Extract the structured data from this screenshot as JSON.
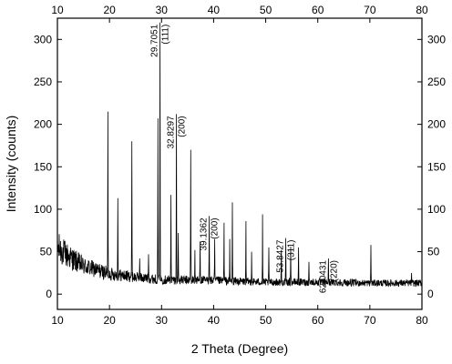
{
  "chart_data": {
    "type": "line",
    "title": "",
    "xlabel": "2 Theta (Degree)",
    "ylabel": "Intensity (counts)",
    "xlim": [
      10,
      80
    ],
    "ylim": [
      -18,
      325
    ],
    "xticks": [
      10,
      20,
      30,
      40,
      50,
      60,
      70,
      80
    ],
    "yticks": [
      0,
      50,
      100,
      150,
      200,
      250,
      300
    ],
    "grid": false,
    "legend": "none",
    "line_color": "#000000",
    "background": {
      "description": "noisy baseline decaying from ~55 counts at 10 deg to ~15 counts beyond 50 deg",
      "points": [
        [
          10,
          55
        ],
        [
          12,
          45
        ],
        [
          15,
          33
        ],
        [
          20,
          24
        ],
        [
          25,
          20
        ],
        [
          30,
          17
        ],
        [
          40,
          16
        ],
        [
          50,
          14
        ],
        [
          60,
          14
        ],
        [
          70,
          13
        ],
        [
          80,
          13
        ]
      ]
    },
    "peaks": [
      {
        "x": 19.7,
        "y": 215
      },
      {
        "x": 21.6,
        "y": 113
      },
      {
        "x": 24.3,
        "y": 180
      },
      {
        "x": 25.8,
        "y": 42
      },
      {
        "x": 27.5,
        "y": 47
      },
      {
        "x": 29.3,
        "y": 207
      },
      {
        "x": 29.7051,
        "y": 320
      },
      {
        "x": 31.8,
        "y": 117
      },
      {
        "x": 32.8297,
        "y": 212
      },
      {
        "x": 33.2,
        "y": 72
      },
      {
        "x": 35.6,
        "y": 170
      },
      {
        "x": 36.4,
        "y": 52
      },
      {
        "x": 37.4,
        "y": 62
      },
      {
        "x": 39.1362,
        "y": 92
      },
      {
        "x": 40.2,
        "y": 65
      },
      {
        "x": 42.0,
        "y": 84
      },
      {
        "x": 43.1,
        "y": 65
      },
      {
        "x": 43.6,
        "y": 108
      },
      {
        "x": 46.2,
        "y": 86
      },
      {
        "x": 47.3,
        "y": 50
      },
      {
        "x": 49.4,
        "y": 94
      },
      {
        "x": 50.6,
        "y": 55
      },
      {
        "x": 53.0,
        "y": 52
      },
      {
        "x": 53.8427,
        "y": 66
      },
      {
        "x": 54.8,
        "y": 56
      },
      {
        "x": 56.3,
        "y": 55
      },
      {
        "x": 58.3,
        "y": 38
      },
      {
        "x": 62.0431,
        "y": 42
      },
      {
        "x": 70.2,
        "y": 58
      },
      {
        "x": 78.0,
        "y": 25
      }
    ],
    "annotations": [
      {
        "x": 29.7051,
        "y": 320,
        "value": "29.7051",
        "hkl": "(111)"
      },
      {
        "x": 32.8297,
        "y": 212,
        "value": "32.8297",
        "hkl": "(200)"
      },
      {
        "x": 39.1362,
        "y": 92,
        "value": "39.1362",
        "hkl": "(200)"
      },
      {
        "x": 53.8427,
        "y": 66,
        "value": "53.8427",
        "hkl": "(311)"
      },
      {
        "x": 62.0431,
        "y": 42,
        "value": "62.0431",
        "hkl": "(220)"
      }
    ]
  }
}
